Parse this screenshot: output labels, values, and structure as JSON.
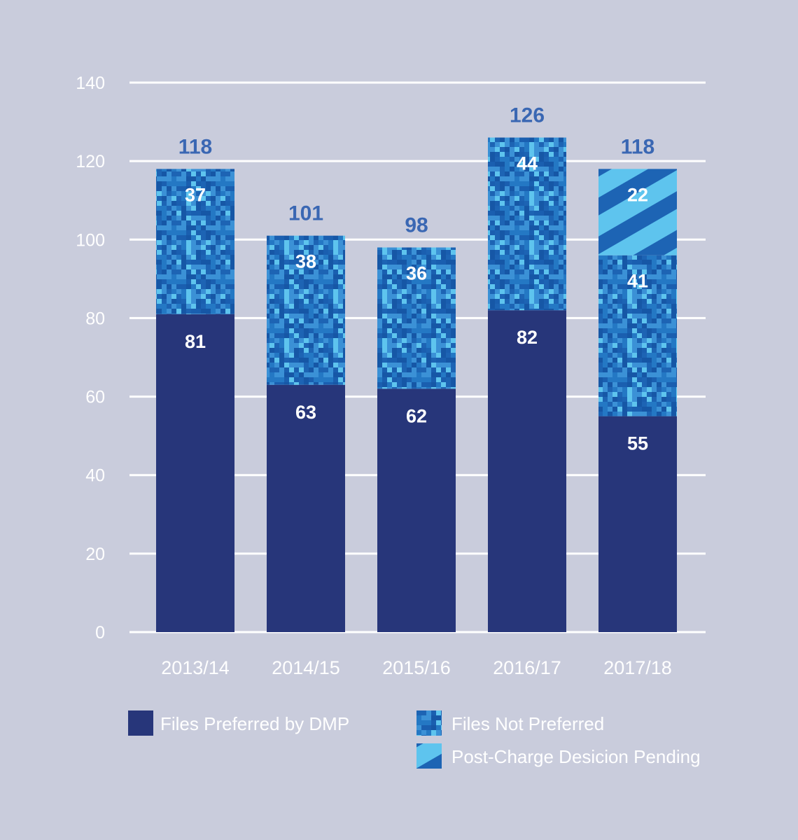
{
  "chart_data": {
    "type": "bar",
    "stacked": true,
    "categories": [
      "2013/14",
      "2014/15",
      "2015/16",
      "2016/17",
      "2017/18"
    ],
    "series": [
      {
        "name": "Files Preferred by DMP",
        "values": [
          81,
          63,
          62,
          82,
          55
        ],
        "color": "#27367a",
        "pattern": "solid"
      },
      {
        "name": "Files Not Preferred",
        "values": [
          37,
          38,
          36,
          44,
          41
        ],
        "color": "#1d64b4",
        "pattern": "camo"
      },
      {
        "name": "Post-Charge Desicion Pending",
        "values": [
          0,
          0,
          0,
          0,
          22
        ],
        "color": "#5ec4ee",
        "pattern": "stripes"
      }
    ],
    "totals": [
      118,
      101,
      98,
      126,
      118
    ],
    "ylim": [
      0,
      140
    ],
    "yticks": [
      0,
      20,
      40,
      60,
      80,
      100,
      120,
      140
    ],
    "grid": true,
    "legend_position": "bottom",
    "colors": {
      "background": "#c9ccdc",
      "grid": "#ffffff",
      "total_label": "#3a67b3",
      "text": "#ffffff"
    }
  }
}
